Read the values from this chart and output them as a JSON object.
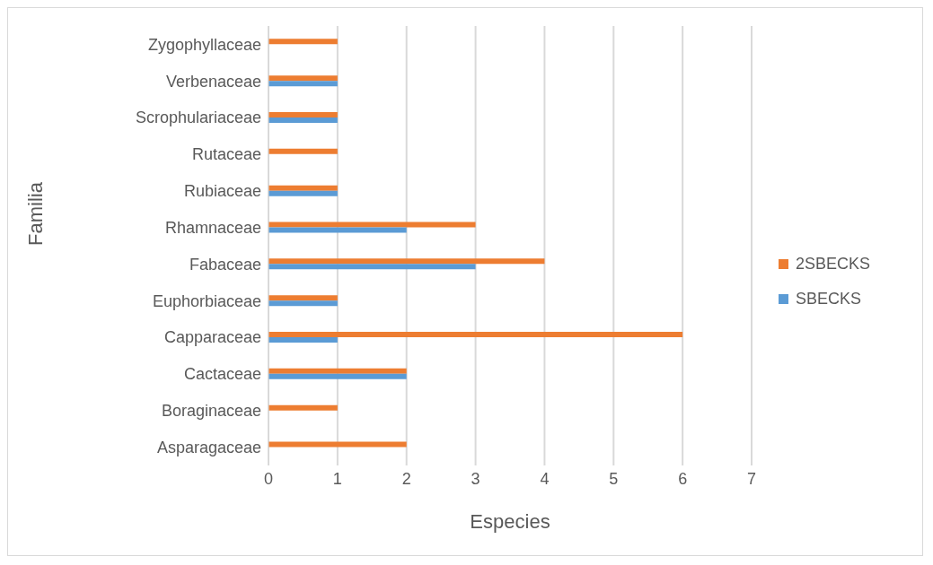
{
  "chart_data": {
    "type": "bar",
    "orientation": "horizontal",
    "xlabel": "Especies",
    "ylabel": "Familia",
    "categories": [
      "Zygophyllaceae",
      "Verbenaceae",
      "Scrophulariaceae",
      "Rutaceae",
      "Rubiaceae",
      "Rhamnaceae",
      "Fabaceae",
      "Euphorbiaceae",
      "Capparaceae",
      "Cactaceae",
      "Boraginaceae",
      "Asparagaceae"
    ],
    "series": [
      {
        "name": "2SBECKS",
        "color": "#ed7d31",
        "values": [
          1,
          1,
          1,
          1,
          1,
          3,
          4,
          1,
          6,
          2,
          1,
          2
        ]
      },
      {
        "name": "SBECKS",
        "color": "#5b9bd5",
        "values": [
          0,
          1,
          1,
          0,
          1,
          2,
          3,
          1,
          1,
          2,
          0,
          0
        ]
      }
    ],
    "xlim": [
      0,
      7
    ],
    "xticks": [
      0,
      1,
      2,
      3,
      4,
      5,
      6,
      7
    ],
    "grid": "x",
    "legend": "right"
  }
}
